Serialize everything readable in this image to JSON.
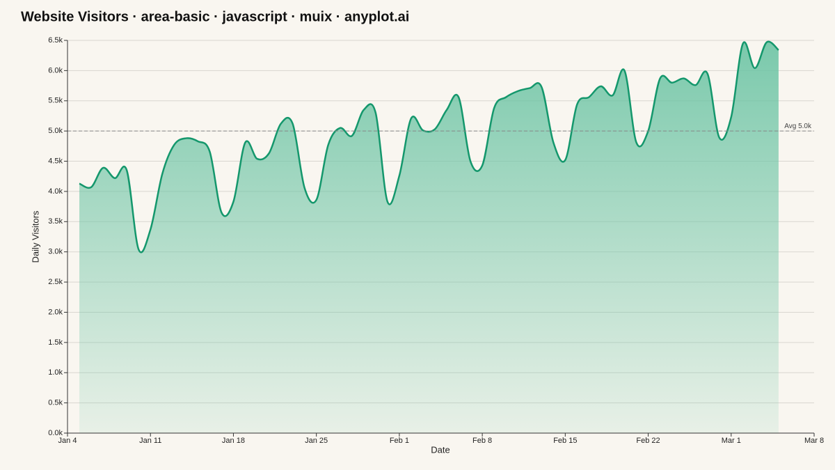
{
  "chart_data": {
    "type": "area",
    "title": "Website Visitors · area-basic · javascript · muix · anyplot.ai",
    "x_label": "Date",
    "y_label": "Daily Visitors",
    "x": [
      "Jan 5",
      "Jan 6",
      "Jan 7",
      "Jan 8",
      "Jan 9",
      "Jan 10",
      "Jan 11",
      "Jan 12",
      "Jan 13",
      "Jan 14",
      "Jan 15",
      "Jan 16",
      "Jan 17",
      "Jan 18",
      "Jan 19",
      "Jan 20",
      "Jan 21",
      "Jan 22",
      "Jan 23",
      "Jan 24",
      "Jan 25",
      "Jan 26",
      "Jan 27",
      "Jan 28",
      "Jan 29",
      "Jan 30",
      "Jan 31",
      "Feb 1",
      "Feb 2",
      "Feb 3",
      "Feb 4",
      "Feb 5",
      "Feb 6",
      "Feb 7",
      "Feb 8",
      "Feb 9",
      "Feb 10",
      "Feb 11",
      "Feb 12",
      "Feb 13",
      "Feb 14",
      "Feb 15",
      "Feb 16",
      "Feb 17",
      "Feb 18",
      "Feb 19",
      "Feb 20",
      "Feb 21",
      "Feb 22",
      "Feb 23",
      "Feb 24",
      "Feb 25",
      "Feb 26",
      "Feb 27",
      "Feb 28",
      "Mar 1",
      "Mar 2",
      "Mar 3",
      "Mar 4",
      "Mar 5"
    ],
    "series": [
      {
        "name": "Daily Visitors",
        "color": "#14976c",
        "values": [
          4130,
          4070,
          4390,
          4220,
          4350,
          3040,
          3370,
          4290,
          4770,
          4880,
          4830,
          4660,
          3650,
          3830,
          4810,
          4540,
          4630,
          5120,
          5120,
          4060,
          3860,
          4770,
          5050,
          4920,
          5350,
          5300,
          3830,
          4260,
          5210,
          5010,
          5030,
          5350,
          5560,
          4500,
          4430,
          5380,
          5560,
          5660,
          5710,
          5730,
          4810,
          4520,
          5440,
          5560,
          5740,
          5590,
          6000,
          4810,
          5000,
          5870,
          5800,
          5870,
          5760,
          5950,
          4890,
          5230,
          6450,
          6040,
          6470,
          6340
        ]
      }
    ],
    "xlim": [
      "Jan 4",
      "Mar 8"
    ],
    "xticks": [
      "Jan 4",
      "Jan 11",
      "Jan 18",
      "Jan 25",
      "Feb 1",
      "Feb 8",
      "Feb 15",
      "Feb 22",
      "Mar 1",
      "Mar 8"
    ],
    "ylim": [
      0,
      6500
    ],
    "yticks": [
      {
        "value": 0,
        "label": "0.0k"
      },
      {
        "value": 500,
        "label": "0.5k"
      },
      {
        "value": 1000,
        "label": "1.0k"
      },
      {
        "value": 1500,
        "label": "1.5k"
      },
      {
        "value": 2000,
        "label": "2.0k"
      },
      {
        "value": 2500,
        "label": "2.5k"
      },
      {
        "value": 3000,
        "label": "3.0k"
      },
      {
        "value": 3500,
        "label": "3.5k"
      },
      {
        "value": 4000,
        "label": "4.0k"
      },
      {
        "value": 4500,
        "label": "4.5k"
      },
      {
        "value": 5000,
        "label": "5.0k"
      },
      {
        "value": 5500,
        "label": "5.5k"
      },
      {
        "value": 6000,
        "label": "6.0k"
      },
      {
        "value": 6500,
        "label": "6.5k"
      }
    ],
    "reference_line": {
      "value": 5000,
      "label": "Avg 5.0k"
    },
    "grid": true
  }
}
